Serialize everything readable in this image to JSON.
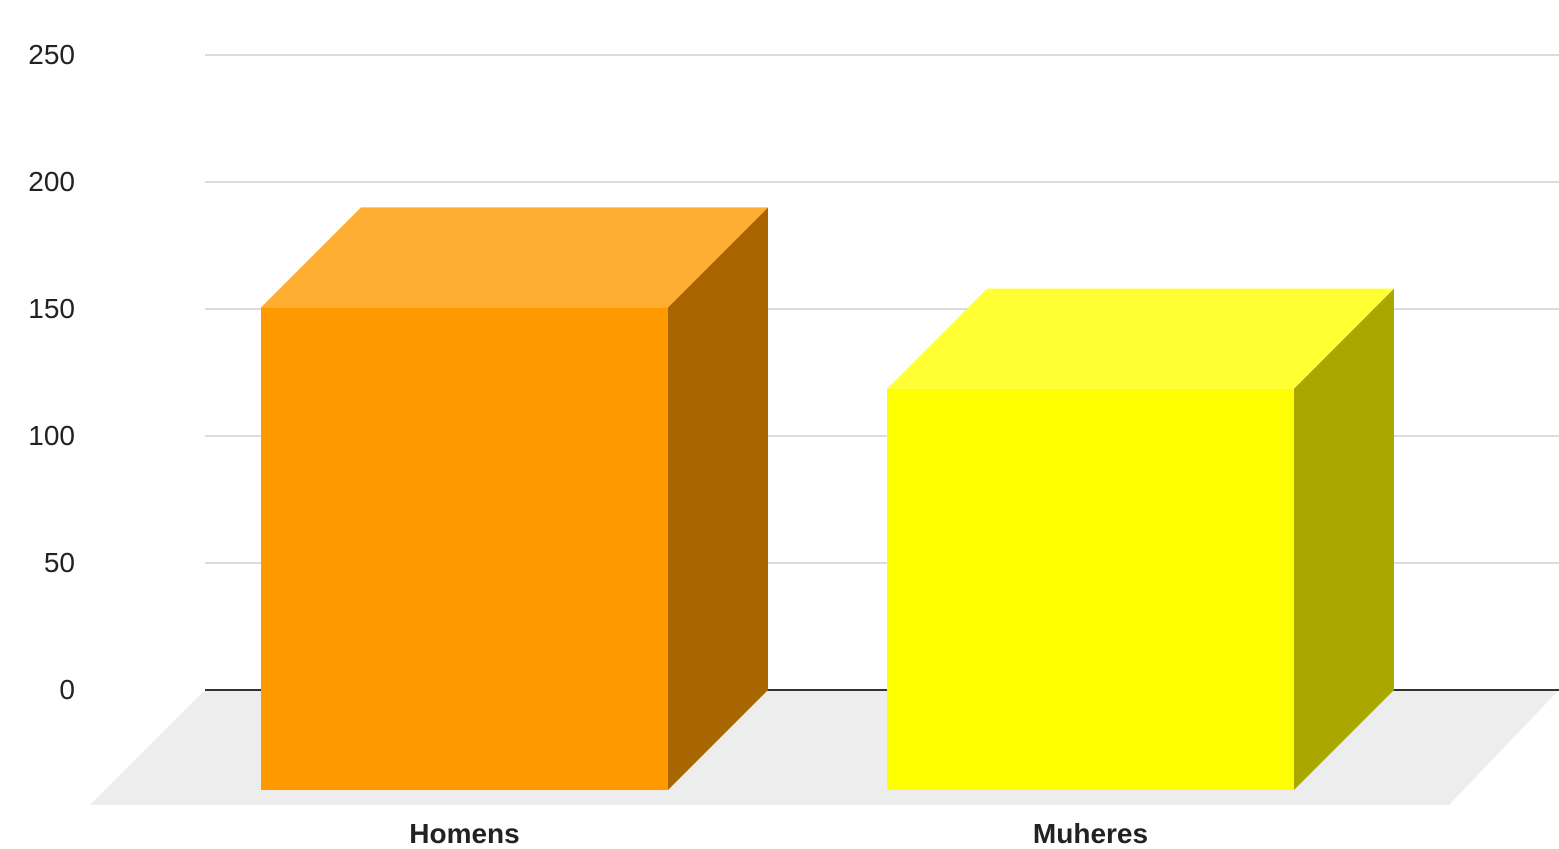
{
  "chart_data": {
    "type": "bar",
    "style": "3d-column",
    "categories": [
      "Homens",
      "Muheres"
    ],
    "values": [
      190,
      158
    ],
    "colors": [
      "#FF9900",
      "#FFFF00"
    ],
    "yticks": [
      "0",
      "50",
      "100",
      "150",
      "200",
      "250"
    ],
    "ylim": [
      0,
      250
    ],
    "grid": true,
    "legend": "none",
    "title": "",
    "xlabel": "",
    "ylabel": ""
  }
}
